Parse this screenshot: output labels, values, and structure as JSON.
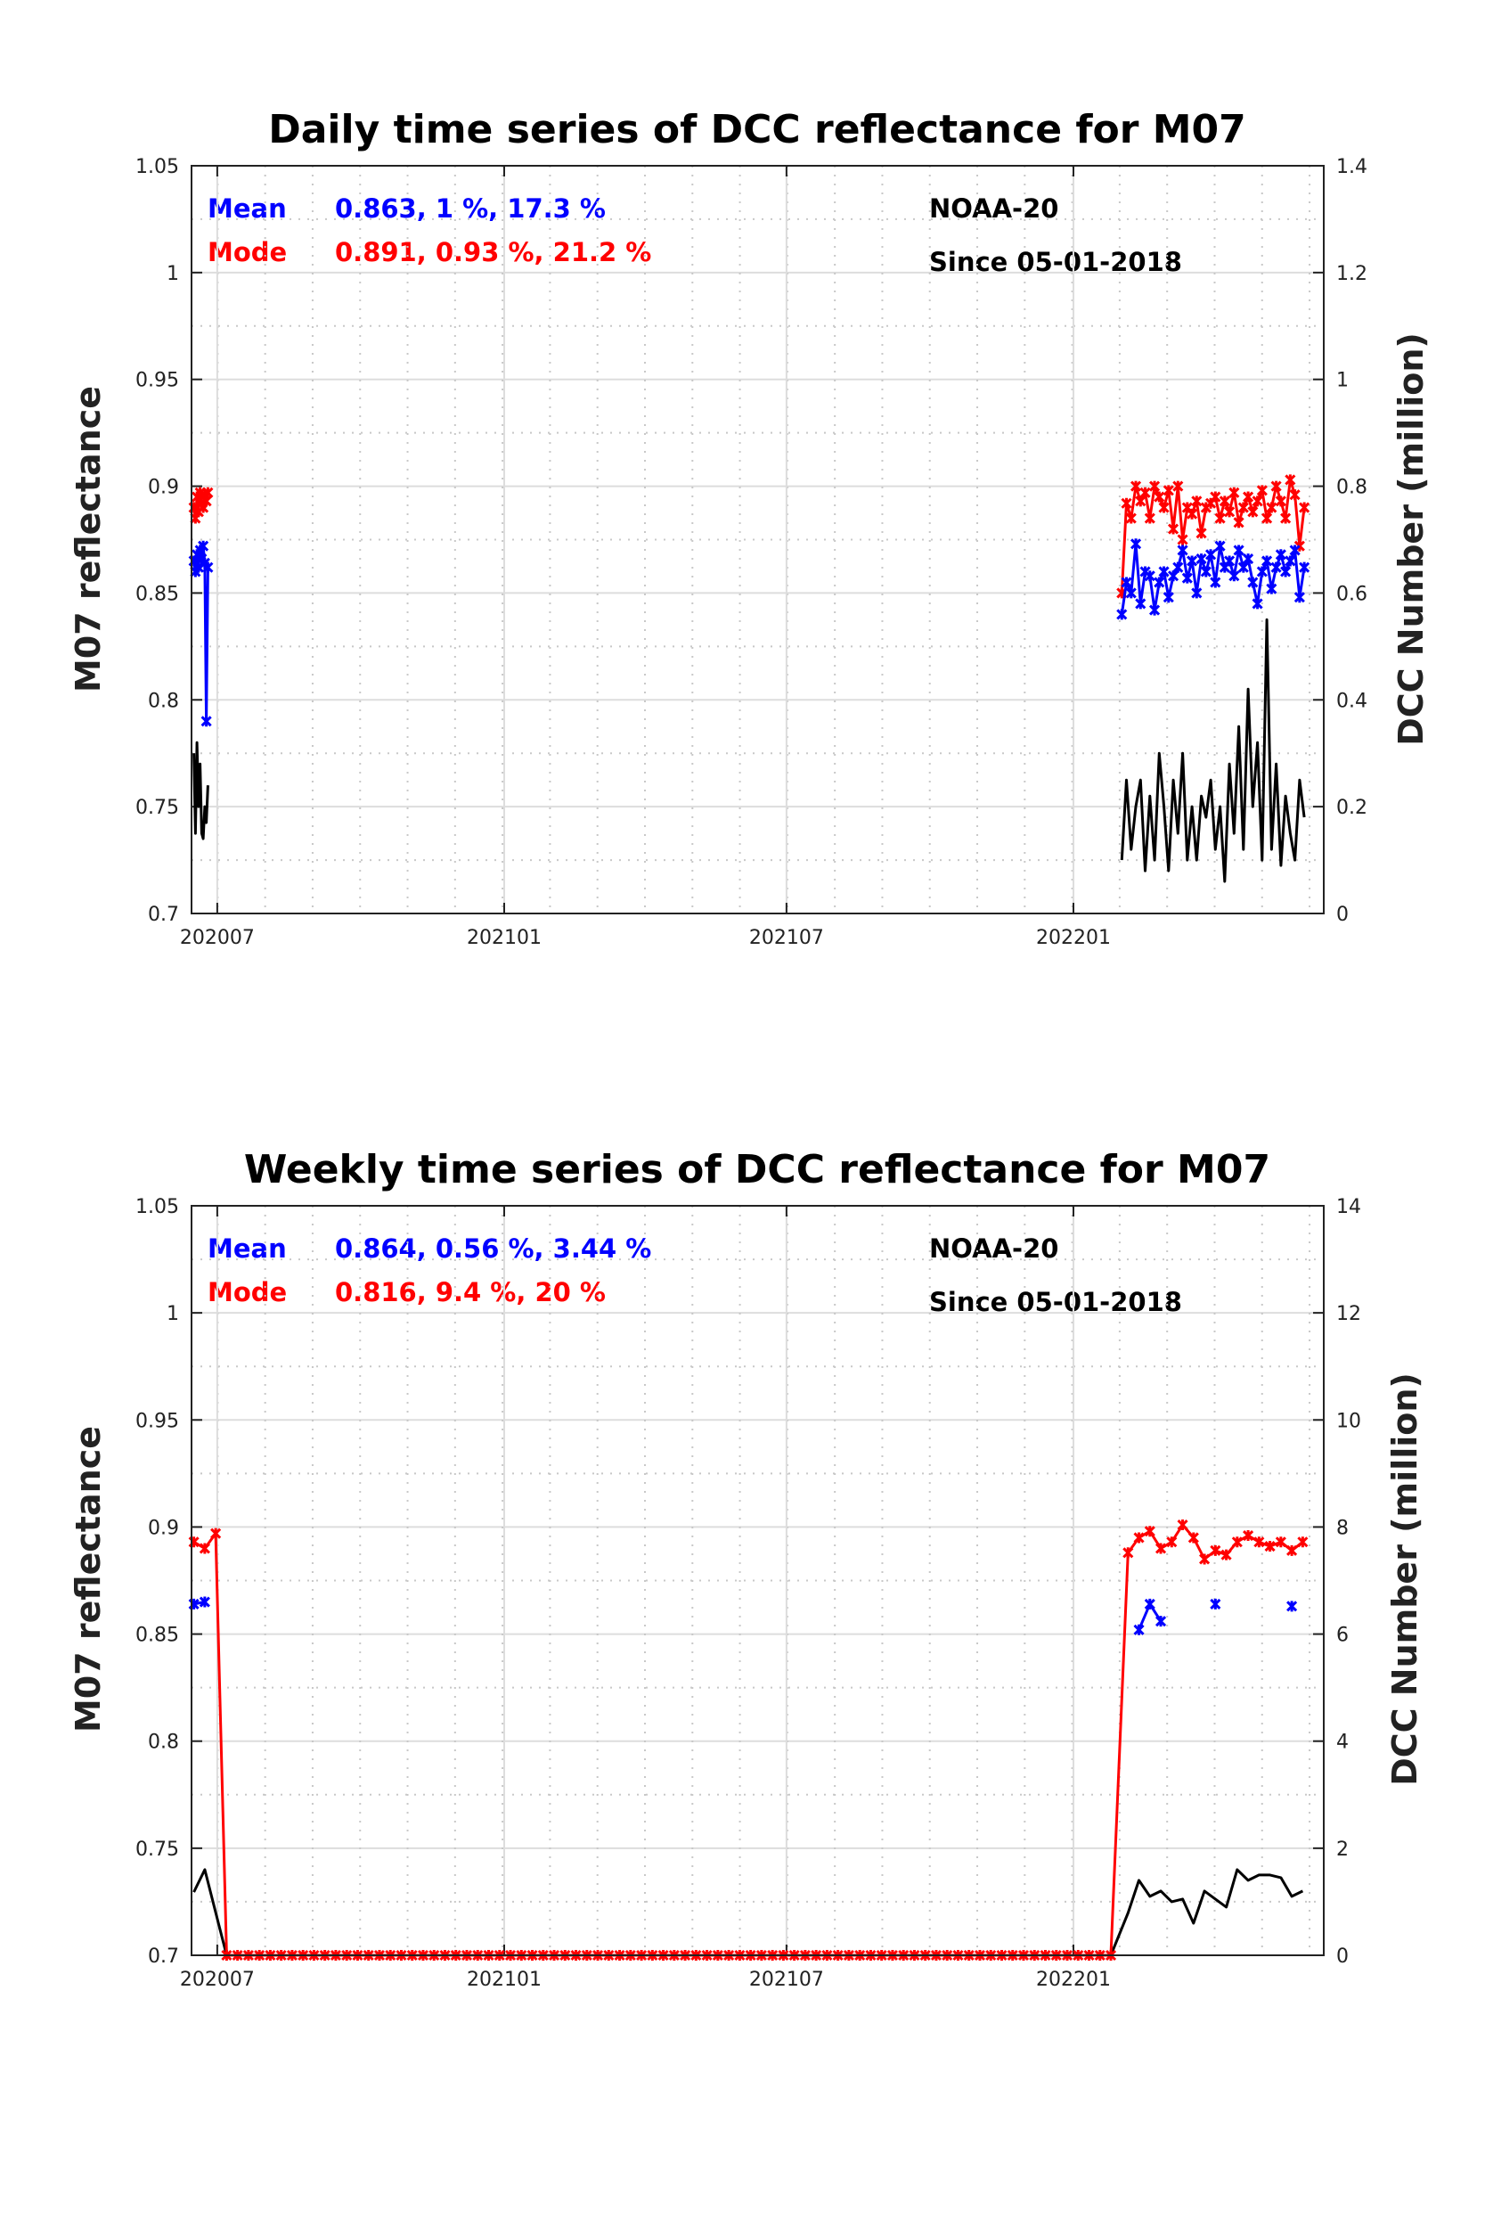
{
  "colors": {
    "mean": "#0000ff",
    "mode": "#ff0000",
    "count": "#000000",
    "grid": "#dcdcdc"
  },
  "chart_data": [
    {
      "type": "line",
      "title": "Daily time series of DCC reflectance for M07",
      "ylabel": "M07 reflectance",
      "ylabel_right": "DCC Number (million)",
      "x_units": "days since 2020-07-01",
      "xlim": [
        -16.5,
        709.5
      ],
      "xticks": [
        {
          "x": 0,
          "label": "202007"
        },
        {
          "x": 184,
          "label": "202101"
        },
        {
          "x": 365,
          "label": "202107"
        },
        {
          "x": 549,
          "label": "202201"
        }
      ],
      "ylim": [
        0.7,
        1.05
      ],
      "yticks": [
        "0.7",
        "0.75",
        "0.8",
        "0.85",
        "0.9",
        "0.95",
        "1",
        "1.05"
      ],
      "ylim_right": [
        0,
        1.4
      ],
      "yticks_right": [
        "0",
        "0.2",
        "0.4",
        "0.6",
        "0.8",
        "1",
        "1.2",
        "1.4"
      ],
      "grid": true,
      "legend": {
        "mean_label": "Mean",
        "mean_stats": "0.863, 1 %, 17.3 %",
        "mode_label": "Mode",
        "mode_stats": "0.891, 0.93 %, 21.2 %",
        "satellite": "NOAA-20",
        "since": "Since 05-01-2018"
      },
      "segments": [
        {
          "x_start": -15,
          "x_step": 1,
          "mean": [
            0.865,
            0.86,
            0.868,
            0.862,
            0.87,
            0.866,
            0.872,
            0.864,
            0.79,
            0.862
          ],
          "mode": [
            0.89,
            0.885,
            0.895,
            0.888,
            0.897,
            0.892,
            0.89,
            0.896,
            0.893,
            0.897
          ],
          "count": [
            0.3,
            0.15,
            0.32,
            0.2,
            0.28,
            0.15,
            0.14,
            0.2,
            0.17,
            0.24
          ]
        },
        {
          "x_start": 580,
          "x_step": 3,
          "mean": [
            0.84,
            0.855,
            0.85,
            0.873,
            0.845,
            0.86,
            0.858,
            0.842,
            0.855,
            0.86,
            0.848,
            0.858,
            0.862,
            0.87,
            0.857,
            0.865,
            0.85,
            0.866,
            0.86,
            0.868,
            0.855,
            0.872,
            0.862,
            0.865,
            0.858,
            0.87,
            0.862,
            0.866,
            0.855,
            0.845,
            0.86,
            0.865,
            0.852,
            0.862,
            0.868,
            0.86,
            0.865,
            0.87,
            0.848,
            0.862
          ],
          "mode": [
            0.85,
            0.892,
            0.885,
            0.9,
            0.893,
            0.897,
            0.885,
            0.9,
            0.895,
            0.89,
            0.898,
            0.88,
            0.9,
            0.875,
            0.89,
            0.887,
            0.893,
            0.878,
            0.89,
            0.892,
            0.895,
            0.885,
            0.893,
            0.888,
            0.897,
            0.883,
            0.89,
            0.895,
            0.888,
            0.893,
            0.898,
            0.885,
            0.89,
            0.9,
            0.893,
            0.885,
            0.903,
            0.896,
            0.872,
            0.89
          ],
          "count": [
            0.1,
            0.25,
            0.12,
            0.2,
            0.25,
            0.08,
            0.22,
            0.1,
            0.3,
            0.2,
            0.08,
            0.25,
            0.15,
            0.3,
            0.1,
            0.2,
            0.1,
            0.22,
            0.18,
            0.25,
            0.12,
            0.2,
            0.06,
            0.28,
            0.15,
            0.35,
            0.12,
            0.42,
            0.2,
            0.32,
            0.1,
            0.55,
            0.12,
            0.28,
            0.09,
            0.22,
            0.15,
            0.1,
            0.25,
            0.18
          ]
        }
      ]
    },
    {
      "type": "line",
      "title": "Weekly time series of DCC reflectance for M07",
      "ylabel": "M07 reflectance",
      "ylabel_right": "DCC Number (million)",
      "x_units": "days since 2020-07-01",
      "xlim": [
        -16.5,
        709.5
      ],
      "xticks": [
        {
          "x": 0,
          "label": "202007"
        },
        {
          "x": 184,
          "label": "202101"
        },
        {
          "x": 365,
          "label": "202107"
        },
        {
          "x": 549,
          "label": "202201"
        }
      ],
      "ylim": [
        0.7,
        1.05
      ],
      "yticks": [
        "0.7",
        "0.75",
        "0.8",
        "0.85",
        "0.9",
        "0.95",
        "1",
        "1.05"
      ],
      "ylim_right": [
        0,
        14
      ],
      "yticks_right": [
        "0",
        "2",
        "4",
        "6",
        "8",
        "10",
        "12",
        "14"
      ],
      "grid": true,
      "legend": {
        "mean_label": "Mean",
        "mean_stats": "0.864, 0.56 %, 3.44 %",
        "mode_label": "Mode",
        "mode_stats": "0.816, 9.4 %, 20 %",
        "satellite": "NOAA-20",
        "since": "Since 05-01-2018"
      },
      "segments": [
        {
          "x_start": -15,
          "x_step": 7,
          "mean": [
            0.864,
            0.865,
            null
          ],
          "mode": [
            0.893,
            0.89,
            0.897
          ],
          "count": [
            1.18,
            1.6,
            0.8
          ]
        },
        {
          "x_start": 6,
          "x_step": 7,
          "repeat": 82,
          "mode_constant": 0.7,
          "count_constant": 0
        },
        {
          "x_start": 584,
          "x_step": 7,
          "mean": [
            null,
            0.852,
            0.864,
            0.856,
            null,
            null,
            null,
            null,
            0.864,
            null,
            null,
            null,
            null,
            null,
            null,
            0.863,
            null
          ],
          "mode": [
            0.888,
            0.895,
            0.898,
            0.89,
            0.893,
            0.901,
            0.895,
            0.885,
            0.889,
            0.887,
            0.893,
            0.896,
            0.893,
            0.891,
            0.893,
            0.889,
            0.893
          ],
          "count": [
            0.79,
            1.4,
            1.1,
            1.2,
            1.0,
            1.05,
            0.6,
            1.2,
            1.05,
            0.9,
            1.6,
            1.4,
            1.5,
            1.5,
            1.45,
            1.1,
            1.2
          ]
        }
      ]
    }
  ]
}
